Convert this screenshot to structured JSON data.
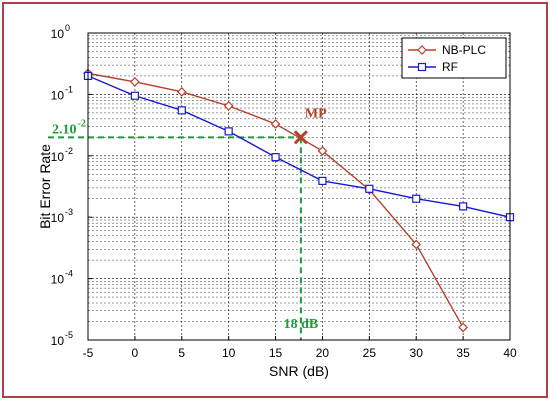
{
  "chart_data": {
    "type": "line",
    "xlabel": "SNR (dB)",
    "ylabel": "Bit Error Rate",
    "x_scale": "linear",
    "y_scale": "log",
    "xlim": [
      -5,
      40
    ],
    "ylim": [
      1e-05,
      1
    ],
    "xticks": [
      -5,
      0,
      5,
      10,
      15,
      20,
      25,
      30,
      35,
      40
    ],
    "grid": true,
    "legend_position": "top-right",
    "series": [
      {
        "name": "NB-PLC",
        "color": "#b5402a",
        "marker": "diamond",
        "x": [
          -5,
          0,
          5,
          10,
          15,
          20,
          25,
          30,
          35
        ],
        "y": [
          0.22,
          0.16,
          0.11,
          0.065,
          0.033,
          0.012,
          0.0028,
          0.00036,
          1.6e-05
        ]
      },
      {
        "name": "RF",
        "color": "#1a1ad1",
        "marker": "square",
        "x": [
          -5,
          0,
          5,
          10,
          15,
          20,
          25,
          30,
          35,
          40
        ],
        "y": [
          0.2,
          0.095,
          0.055,
          0.025,
          0.0095,
          0.0039,
          0.0029,
          0.002,
          0.0015,
          0.001
        ]
      }
    ],
    "annotations": {
      "mp_label": "MP",
      "mp_point": {
        "x": 17.7,
        "y": 0.02
      },
      "y_value_label": "2.10",
      "y_value_exp": "-2",
      "x_value_label": "18 dB",
      "guide_color": "#1f9a3b",
      "mp_color": "#b5402a"
    }
  }
}
